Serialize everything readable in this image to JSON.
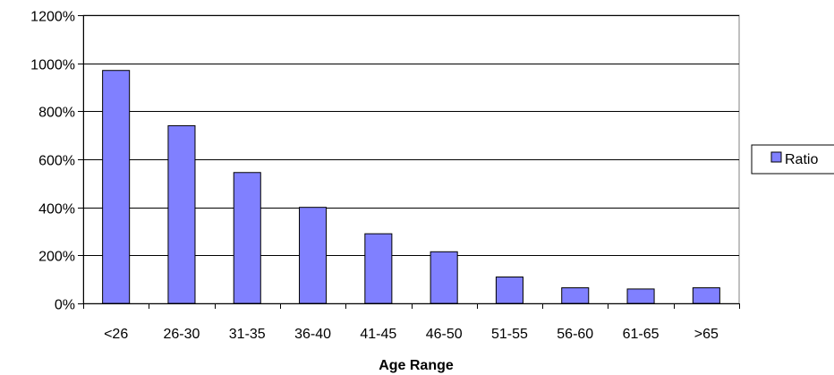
{
  "chart_data": {
    "type": "bar",
    "title": "",
    "xlabel": "Age Range",
    "ylabel": "",
    "categories": [
      "<26",
      "26-30",
      "31-35",
      "36-40",
      "41-45",
      "46-50",
      "51-55",
      "56-60",
      "61-65",
      ">65"
    ],
    "series": [
      {
        "name": "Ratio",
        "values": [
          970,
          740,
          545,
          400,
          290,
          215,
          110,
          65,
          60,
          65
        ],
        "color": "#8080ff"
      }
    ],
    "ylim": [
      0,
      1200
    ],
    "yticks": [
      0,
      200,
      400,
      600,
      800,
      1000,
      1200
    ],
    "ytick_labels": [
      "0%",
      "200%",
      "400%",
      "600%",
      "800%",
      "1000%",
      "1200%"
    ],
    "grid": true,
    "legend_position": "right"
  }
}
